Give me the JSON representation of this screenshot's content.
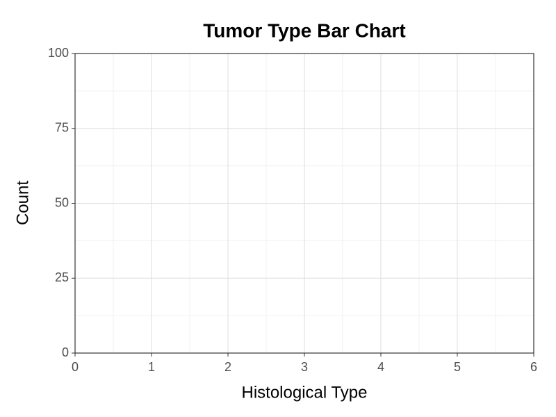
{
  "chart_data": {
    "type": "bar",
    "title": "Tumor Type Bar Chart",
    "x_label": "Histological Type",
    "y_label": "Count",
    "x": [],
    "values": [],
    "color": "#595959",
    "xlim": [
      0,
      6
    ],
    "xticks": [
      0,
      1,
      2,
      3,
      4,
      5,
      6
    ],
    "ylim": [
      0,
      100
    ],
    "yticks": [
      0,
      25,
      50,
      75,
      100
    ],
    "grid": true,
    "minor_grid": true
  }
}
